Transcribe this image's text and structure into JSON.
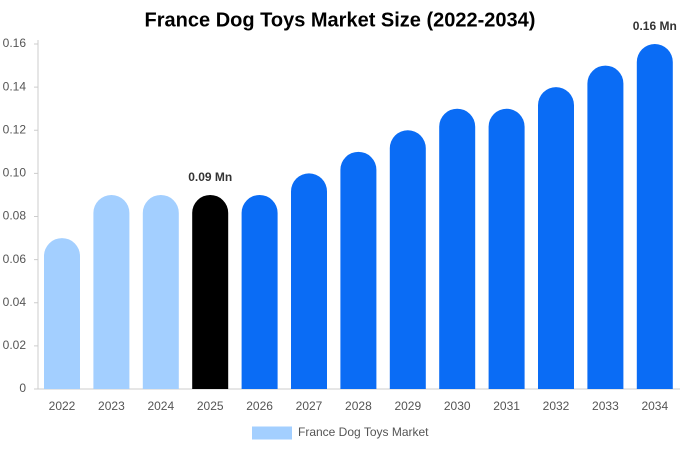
{
  "chart_data": {
    "type": "bar",
    "title": "France Dog Toys Market Size (2022-2034)",
    "categories": [
      "2022",
      "2023",
      "2024",
      "2025",
      "2026",
      "2027",
      "2028",
      "2029",
      "2030",
      "2031",
      "2032",
      "2033",
      "2034"
    ],
    "series": [
      {
        "name": "France Dog Toys Market",
        "color": "#a3cfff",
        "values": [
          0.07,
          0.09,
          0.09,
          0.09,
          0.09,
          0.1,
          0.11,
          0.12,
          0.13,
          0.13,
          0.14,
          0.15,
          0.16
        ],
        "colors": [
          "#a3cfff",
          "#a3cfff",
          "#a3cfff",
          "#000000",
          "#0a6cf5",
          "#0a6cf5",
          "#0a6cf5",
          "#0a6cf5",
          "#0a6cf5",
          "#0a6cf5",
          "#0a6cf5",
          "#0a6cf5",
          "#0a6cf5"
        ],
        "value_labels": [
          null,
          null,
          null,
          "0.09 Mn",
          null,
          null,
          null,
          null,
          null,
          null,
          null,
          null,
          "0.16 Mn"
        ]
      }
    ],
    "ylim": [
      0,
      0.16
    ],
    "yticks": [
      0,
      0.02,
      0.04,
      0.06,
      0.08,
      {
        "value": 0.1,
        "label": "0.10"
      },
      0.12,
      0.14,
      0.16
    ],
    "grid": false,
    "legend": "bottom"
  }
}
